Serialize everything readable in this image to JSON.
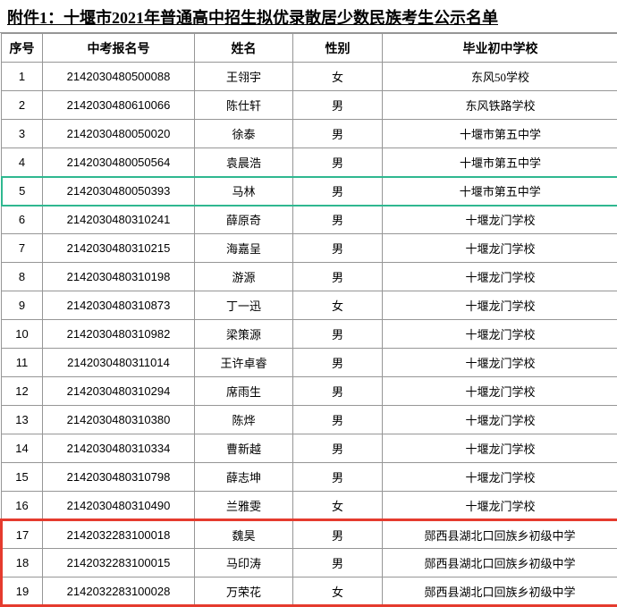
{
  "title_prefix": "附件1：",
  "title_main": "十堰市2021年普通高中招生拟优录散居少数民族考生公示名单",
  "columns": [
    "序号",
    "中考报名号",
    "姓名",
    "性别",
    "毕业初中学校"
  ],
  "highlight": {
    "green_row": 5,
    "red_rows": [
      17,
      18,
      19
    ]
  },
  "colors": {
    "border": "#969696",
    "green": "#2fb890",
    "red": "#e53b2e"
  },
  "rows": [
    {
      "idx": 1,
      "exam": "2142030480500088",
      "name": "王翎宇",
      "sex": "女",
      "school": "东风50学校"
    },
    {
      "idx": 2,
      "exam": "2142030480610066",
      "name": "陈仕轩",
      "sex": "男",
      "school": "东风铁路学校"
    },
    {
      "idx": 3,
      "exam": "2142030480050020",
      "name": "徐泰",
      "sex": "男",
      "school": "十堰市第五中学"
    },
    {
      "idx": 4,
      "exam": "2142030480050564",
      "name": "袁晨浩",
      "sex": "男",
      "school": "十堰市第五中学"
    },
    {
      "idx": 5,
      "exam": "2142030480050393",
      "name": "马林",
      "sex": "男",
      "school": "十堰市第五中学"
    },
    {
      "idx": 6,
      "exam": "2142030480310241",
      "name": "薛原奇",
      "sex": "男",
      "school": "十堰龙门学校"
    },
    {
      "idx": 7,
      "exam": "2142030480310215",
      "name": "海嘉呈",
      "sex": "男",
      "school": "十堰龙门学校"
    },
    {
      "idx": 8,
      "exam": "2142030480310198",
      "name": "游源",
      "sex": "男",
      "school": "十堰龙门学校"
    },
    {
      "idx": 9,
      "exam": "2142030480310873",
      "name": "丁一迅",
      "sex": "女",
      "school": "十堰龙门学校"
    },
    {
      "idx": 10,
      "exam": "2142030480310982",
      "name": "梁策源",
      "sex": "男",
      "school": "十堰龙门学校"
    },
    {
      "idx": 11,
      "exam": "2142030480311014",
      "name": "王许卓睿",
      "sex": "男",
      "school": "十堰龙门学校"
    },
    {
      "idx": 12,
      "exam": "2142030480310294",
      "name": "席雨生",
      "sex": "男",
      "school": "十堰龙门学校"
    },
    {
      "idx": 13,
      "exam": "2142030480310380",
      "name": "陈烨",
      "sex": "男",
      "school": "十堰龙门学校"
    },
    {
      "idx": 14,
      "exam": "2142030480310334",
      "name": "曹新越",
      "sex": "男",
      "school": "十堰龙门学校"
    },
    {
      "idx": 15,
      "exam": "2142030480310798",
      "name": "薛志坤",
      "sex": "男",
      "school": "十堰龙门学校"
    },
    {
      "idx": 16,
      "exam": "2142030480310490",
      "name": "兰雅雯",
      "sex": "女",
      "school": "十堰龙门学校"
    },
    {
      "idx": 17,
      "exam": "2142032283100018",
      "name": "魏昊",
      "sex": "男",
      "school": "郧西县湖北口回族乡初级中学"
    },
    {
      "idx": 18,
      "exam": "2142032283100015",
      "name": "马印涛",
      "sex": "男",
      "school": "郧西县湖北口回族乡初级中学"
    },
    {
      "idx": 19,
      "exam": "2142032283100028",
      "name": "万荣花",
      "sex": "女",
      "school": "郧西县湖北口回族乡初级中学"
    }
  ]
}
